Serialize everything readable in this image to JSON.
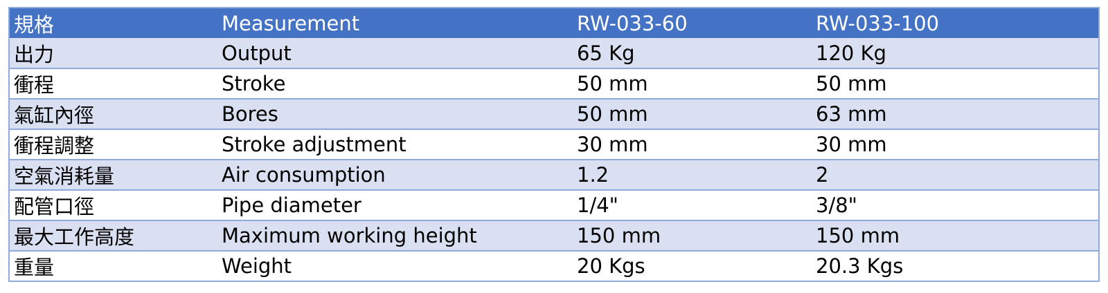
{
  "header": [
    "規格",
    "Measurement",
    "RW-033-60",
    "RW-033-100"
  ],
  "rows": [
    [
      "出力",
      "Output",
      "65 Kg",
      "120 Kg"
    ],
    [
      "衝程",
      "Stroke",
      "50 mm",
      "50 mm"
    ],
    [
      "氣缸內徑",
      "Bores",
      "50 mm",
      "63 mm"
    ],
    [
      "衝程調整",
      "Stroke adjustment",
      "30 mm",
      "30 mm"
    ],
    [
      "空氣消耗量",
      "Air consumption",
      "1.2",
      "2"
    ],
    [
      "配管口徑",
      "Pipe diameter",
      "1/4\"",
      "3/8\""
    ],
    [
      "最大工作高度",
      "Maximum working height",
      "150 mm",
      "150 mm"
    ],
    [
      "重量",
      "Weight",
      "20 Kgs",
      "20.3 Kgs"
    ]
  ],
  "colors": {
    "header_bg": "#4472C4",
    "band_bg": "#D9E0F1",
    "border": "#8EA9DB"
  }
}
